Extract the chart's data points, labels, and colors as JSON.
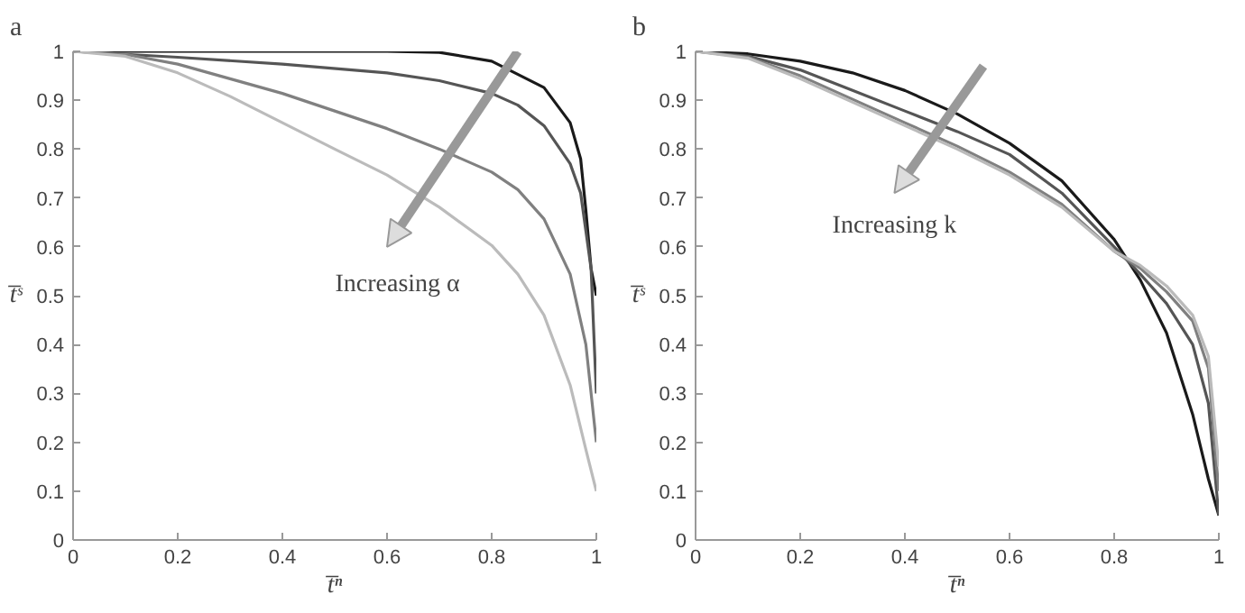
{
  "chart_data": [
    {
      "type": "line",
      "title": "a",
      "xlabel": "t̅ⁿ",
      "ylabel": "t̅ˢ",
      "annotations": [
        "Increasing α"
      ],
      "grid": false,
      "marker": "none",
      "line_style": "solid",
      "xlim": [
        0,
        1
      ],
      "ylim": [
        0,
        1
      ],
      "xticks": [
        0,
        0.2,
        0.4,
        0.6,
        0.8,
        1
      ],
      "yticks": [
        0,
        0.1,
        0.2,
        0.3,
        0.4,
        0.5,
        0.6,
        0.7,
        0.8,
        0.9,
        1
      ],
      "series": [
        {
          "color": "#1a1a1a",
          "x": [
            0,
            0.2,
            0.4,
            0.6,
            0.7,
            0.8,
            0.9,
            0.95,
            0.97,
            0.98,
            0.99,
            1
          ],
          "values": [
            1,
            1,
            1,
            1,
            0.998,
            0.98,
            0.926,
            0.854,
            0.78,
            0.675,
            0.555,
            0.5
          ]
        },
        {
          "color": "#555555",
          "x": [
            0,
            0.2,
            0.4,
            0.6,
            0.7,
            0.8,
            0.85,
            0.9,
            0.95,
            0.97,
            0.99,
            1
          ],
          "values": [
            1,
            0.988,
            0.974,
            0.956,
            0.94,
            0.914,
            0.89,
            0.848,
            0.77,
            0.71,
            0.555,
            0.3
          ]
        },
        {
          "color": "#808080",
          "x": [
            0,
            0.1,
            0.2,
            0.3,
            0.4,
            0.5,
            0.6,
            0.7,
            0.8,
            0.85,
            0.9,
            0.95,
            0.98,
            1
          ],
          "values": [
            1,
            0.994,
            0.974,
            0.944,
            0.914,
            0.878,
            0.842,
            0.8,
            0.753,
            0.717,
            0.657,
            0.544,
            0.4,
            0.2
          ]
        },
        {
          "color": "#bbbbbb",
          "x": [
            0,
            0.1,
            0.2,
            0.3,
            0.4,
            0.5,
            0.6,
            0.7,
            0.8,
            0.85,
            0.9,
            0.95,
            0.98,
            1
          ],
          "values": [
            1,
            0.99,
            0.956,
            0.908,
            0.854,
            0.8,
            0.747,
            0.681,
            0.603,
            0.544,
            0.46,
            0.317,
            0.185,
            0.1
          ]
        }
      ]
    },
    {
      "type": "line",
      "title": "b",
      "xlabel": "t̅ⁿ",
      "ylabel": "t̅ˢ",
      "annotations": [
        "Increasing k"
      ],
      "grid": false,
      "marker": "none",
      "line_style": "solid",
      "xlim": [
        0,
        1
      ],
      "ylim": [
        0,
        1
      ],
      "xticks": [
        0,
        0.2,
        0.4,
        0.6,
        0.8,
        1
      ],
      "yticks": [
        0,
        0.1,
        0.2,
        0.3,
        0.4,
        0.5,
        0.6,
        0.7,
        0.8,
        0.9,
        1
      ],
      "series": [
        {
          "color": "#1a1a1a",
          "x": [
            0,
            0.1,
            0.2,
            0.3,
            0.4,
            0.5,
            0.6,
            0.7,
            0.8,
            0.85,
            0.9,
            0.95,
            0.98,
            1
          ],
          "values": [
            1,
            0.995,
            0.98,
            0.956,
            0.92,
            0.872,
            0.812,
            0.735,
            0.615,
            0.532,
            0.424,
            0.257,
            0.125,
            0.05
          ]
        },
        {
          "color": "#555555",
          "x": [
            0,
            0.1,
            0.2,
            0.3,
            0.4,
            0.5,
            0.6,
            0.7,
            0.8,
            0.85,
            0.9,
            0.95,
            0.98,
            1
          ],
          "values": [
            1,
            0.99,
            0.962,
            0.92,
            0.878,
            0.836,
            0.789,
            0.71,
            0.6,
            0.544,
            0.484,
            0.4,
            0.28,
            0.05
          ]
        },
        {
          "color": "#808080",
          "x": [
            0,
            0.1,
            0.2,
            0.3,
            0.4,
            0.5,
            0.6,
            0.7,
            0.8,
            0.85,
            0.9,
            0.95,
            0.98,
            1
          ],
          "values": [
            1,
            0.988,
            0.95,
            0.902,
            0.854,
            0.806,
            0.753,
            0.687,
            0.591,
            0.556,
            0.508,
            0.448,
            0.352,
            0.1
          ]
        },
        {
          "color": "#bbbbbb",
          "x": [
            0,
            0.1,
            0.2,
            0.3,
            0.4,
            0.5,
            0.6,
            0.7,
            0.8,
            0.85,
            0.9,
            0.95,
            0.98,
            1
          ],
          "values": [
            1,
            0.986,
            0.944,
            0.896,
            0.848,
            0.8,
            0.747,
            0.681,
            0.591,
            0.562,
            0.52,
            0.46,
            0.376,
            0.15
          ]
        }
      ]
    }
  ]
}
